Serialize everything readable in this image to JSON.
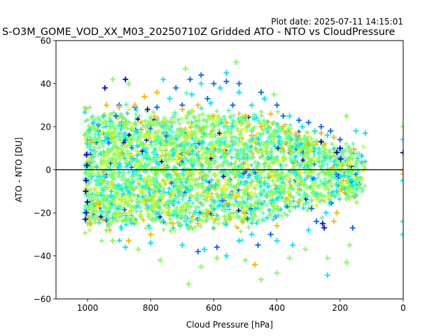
{
  "plot_date": "Plot date: 2025-07-11 14:15:01",
  "chart_data": {
    "type": "scatter",
    "title": "S-O3M_GOME_VOD_XX_M03_20250710Z Gridded ATO - NTO vs CloudPressure",
    "xlabel": "Cloud Pressure [hPa]",
    "ylabel": "ATO - NTO [DU]",
    "xlim": [
      1100,
      0
    ],
    "ylim": [
      -60,
      60
    ],
    "x_inverted": true,
    "x_ticks": [
      1000,
      800,
      600,
      400,
      200,
      0
    ],
    "y_ticks": [
      -60,
      -40,
      -20,
      0,
      20,
      40,
      60
    ],
    "marker": "+",
    "grid": false,
    "reference_line": {
      "y": 0,
      "color": "#000000"
    },
    "point_cloud": {
      "x_range": [
        120,
        1010
      ],
      "core_y_range": [
        -25,
        25
      ],
      "extreme_y_range": [
        -55,
        50
      ],
      "colors": [
        "#0000cd",
        "#0066ff",
        "#00e5ff",
        "#4dffb2",
        "#7fff5a",
        "#c8ff32",
        "#ffe600",
        "#ffb300"
      ]
    },
    "series": [
      {
        "colormap_level": "low",
        "color": "#0000cd",
        "points": [
          [
            1003,
            7
          ],
          [
            1005,
            -5
          ],
          [
            1004,
            -20
          ],
          [
            1007,
            -23
          ],
          [
            1000,
            -15
          ],
          [
            1002,
            2
          ],
          [
            1006,
            -10
          ],
          [
            880,
            42
          ],
          [
            945,
            38
          ],
          [
            810,
            28
          ],
          [
            260,
            13
          ],
          [
            210,
            8
          ],
          [
            205,
            -3
          ],
          [
            198,
            5
          ],
          [
            255,
            -25
          ],
          [
            250,
            -27
          ],
          [
            200,
            10
          ],
          [
            0,
            8
          ]
        ]
      },
      {
        "colormap_level": "mid-low",
        "color": "#0066ff",
        "points": [
          [
            640,
            44
          ],
          [
            675,
            42
          ],
          [
            600,
            40
          ],
          [
            560,
            41
          ],
          [
            520,
            40
          ],
          [
            720,
            38
          ],
          [
            450,
            36
          ],
          [
            400,
            30
          ],
          [
            380,
            25
          ],
          [
            330,
            23
          ],
          [
            300,
            22
          ],
          [
            540,
            30
          ],
          [
            620,
            33
          ],
          [
            700,
            30
          ],
          [
            780,
            29
          ],
          [
            850,
            29
          ],
          [
            900,
            30
          ],
          [
            910,
            25
          ],
          [
            260,
            20
          ],
          [
            230,
            18
          ],
          [
            200,
            14
          ],
          [
            275,
            -24
          ],
          [
            290,
            -18
          ],
          [
            650,
            -38
          ],
          [
            590,
            -36
          ],
          [
            460,
            -35
          ],
          [
            420,
            -30
          ],
          [
            160,
            -27
          ]
        ]
      },
      {
        "colormap_level": "mid",
        "color": "#00e5ff",
        "points": [
          [
            760,
            42
          ],
          [
            560,
            45
          ],
          [
            640,
            40
          ],
          [
            580,
            38
          ],
          [
            520,
            36
          ],
          [
            670,
            35
          ],
          [
            740,
            33
          ],
          [
            610,
            31
          ],
          [
            480,
            30
          ],
          [
            440,
            33
          ],
          [
            360,
            25
          ],
          [
            320,
            20
          ],
          [
            280,
            18
          ],
          [
            240,
            16
          ],
          [
            150,
            18
          ],
          [
            120,
            17
          ],
          [
            200,
            -3
          ],
          [
            210,
            -10
          ],
          [
            230,
            -15
          ],
          [
            245,
            -20
          ],
          [
            880,
            -36
          ],
          [
            800,
            -34
          ],
          [
            700,
            -35
          ],
          [
            630,
            -37
          ],
          [
            560,
            -40
          ],
          [
            520,
            -33
          ],
          [
            480,
            -30
          ],
          [
            400,
            -33
          ],
          [
            350,
            -35
          ],
          [
            300,
            -28
          ],
          [
            240,
            -49
          ],
          [
            0,
            -30
          ],
          [
            0,
            -24
          ],
          [
            0,
            -5
          ],
          [
            0,
            14
          ]
        ]
      },
      {
        "colormap_level": "mid-high",
        "color": "#7fff5a",
        "points": [
          [
            1005,
            17
          ],
          [
            920,
            42
          ],
          [
            870,
            40
          ],
          [
            690,
            47
          ],
          [
            530,
            50
          ],
          [
            410,
            35
          ],
          [
            180,
            25
          ],
          [
            170,
            -35
          ],
          [
            180,
            -43
          ],
          [
            240,
            -41
          ],
          [
            310,
            -37
          ],
          [
            360,
            -41
          ],
          [
            400,
            -48
          ],
          [
            450,
            -51
          ],
          [
            500,
            -42
          ],
          [
            590,
            -41
          ],
          [
            640,
            -45
          ],
          [
            680,
            -53
          ],
          [
            770,
            -42
          ],
          [
            840,
            -37
          ],
          [
            920,
            -33
          ],
          [
            1000,
            -25
          ],
          [
            940,
            -28
          ],
          [
            0,
            20
          ]
        ]
      },
      {
        "colormap_level": "high",
        "color": "#ffb300",
        "points": [
          [
            940,
            30
          ],
          [
            900,
            29
          ],
          [
            850,
            30
          ],
          [
            820,
            34
          ],
          [
            780,
            36
          ],
          [
            700,
            28
          ],
          [
            650,
            30
          ],
          [
            600,
            25
          ],
          [
            560,
            22
          ],
          [
            500,
            25
          ],
          [
            450,
            20
          ],
          [
            420,
            26
          ],
          [
            380,
            20
          ],
          [
            340,
            16
          ],
          [
            300,
            12
          ],
          [
            260,
            17
          ],
          [
            220,
            15
          ],
          [
            190,
            -5
          ],
          [
            195,
            -9
          ],
          [
            210,
            -20
          ],
          [
            220,
            -24
          ],
          [
            400,
            -26
          ],
          [
            470,
            -44
          ],
          [
            550,
            -23
          ],
          [
            650,
            -25
          ],
          [
            730,
            -25
          ],
          [
            800,
            -30
          ],
          [
            870,
            -33
          ],
          [
            930,
            -28
          ],
          [
            990,
            -25
          ],
          [
            0,
            0
          ],
          [
            0,
            -2
          ]
        ]
      }
    ]
  }
}
